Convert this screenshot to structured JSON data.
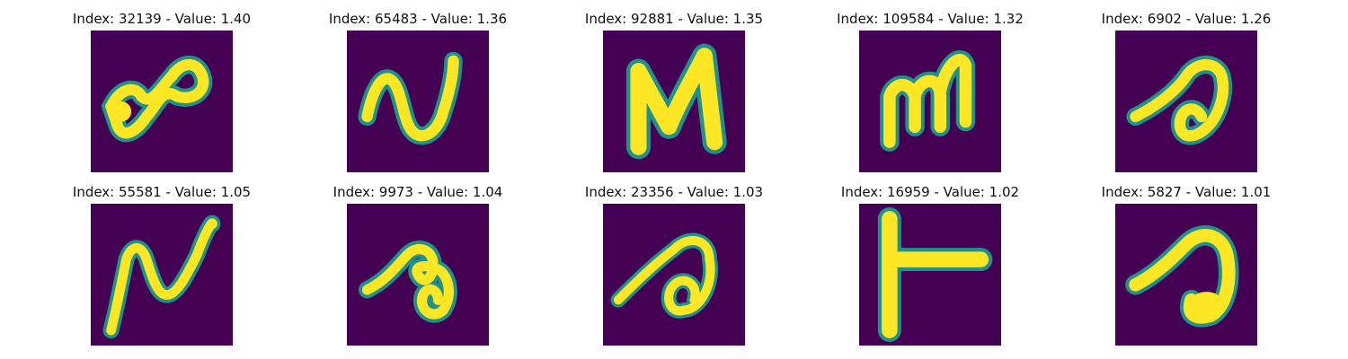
{
  "colors": {
    "background": "#440154",
    "mid": "#21918c",
    "high": "#fde725"
  },
  "grid": {
    "rows": 2,
    "cols": 5,
    "panels": [
      {
        "title": "Index: 32139 - Value: 1.40",
        "index": 32139,
        "value": 1.4,
        "glyph": "loop-squiggle"
      },
      {
        "title": "Index: 65483 - Value: 1.36",
        "index": 65483,
        "value": 1.36,
        "glyph": "wave-n"
      },
      {
        "title": "Index: 92881 - Value: 1.35",
        "index": 92881,
        "value": 1.35,
        "glyph": "letter-n-heavy"
      },
      {
        "title": "Index: 109584 - Value: 1.32",
        "index": 109584,
        "value": 1.32,
        "glyph": "letter-m"
      },
      {
        "title": "Index: 6902 - Value: 1.26",
        "index": 6902,
        "value": 1.26,
        "glyph": "curl-a"
      },
      {
        "title": "Index: 55581 - Value: 1.05",
        "index": 55581,
        "value": 1.05,
        "glyph": "squiggle-n"
      },
      {
        "title": "Index: 9973 - Value: 1.04",
        "index": 9973,
        "value": 1.04,
        "glyph": "small-curl"
      },
      {
        "title": "Index: 23356 - Value: 1.03",
        "index": 23356,
        "value": 1.03,
        "glyph": "spiral-curl"
      },
      {
        "title": "Index: 16959 - Value: 1.02",
        "index": 16959,
        "value": 1.02,
        "glyph": "letter-t-side"
      },
      {
        "title": "Index: 5827 - Value: 1.01",
        "index": 5827,
        "value": 1.01,
        "glyph": "blob-a"
      }
    ]
  }
}
